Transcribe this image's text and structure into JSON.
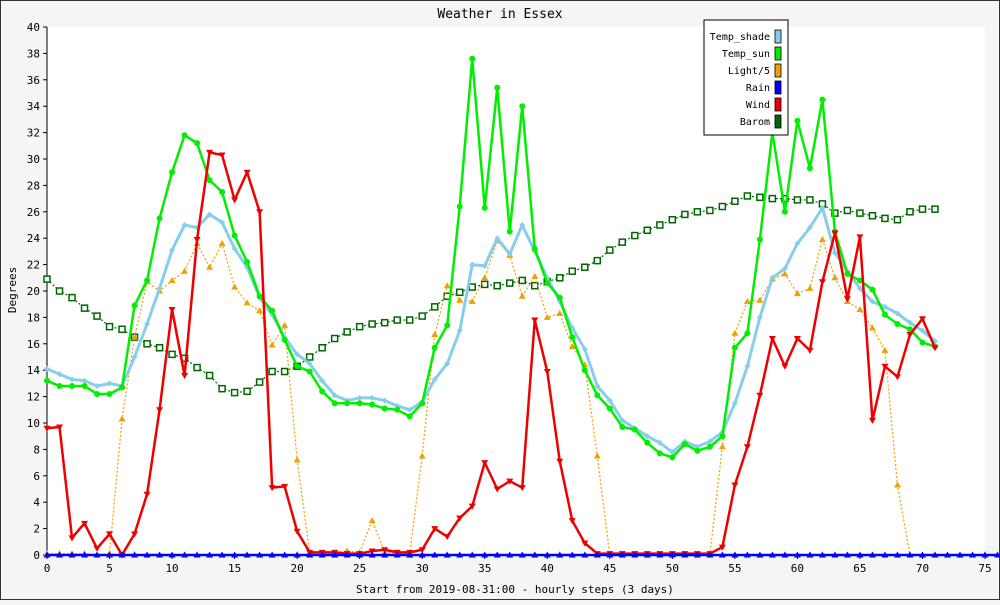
{
  "chart_data": {
    "type": "line",
    "title": "Weather in Essex",
    "xlabel": "Start from 2019-08-31:00 - hourly steps (3 days)",
    "ylabel": "Degrees",
    "xlim": [
      0,
      75
    ],
    "ylim": [
      0,
      40
    ],
    "x_ticks": [
      0,
      5,
      10,
      15,
      20,
      25,
      30,
      35,
      40,
      45,
      50,
      55,
      60,
      65,
      70,
      75
    ],
    "y_ticks": [
      0,
      2,
      4,
      6,
      8,
      10,
      12,
      14,
      16,
      18,
      20,
      22,
      24,
      26,
      28,
      30,
      32,
      34,
      36,
      38,
      40
    ],
    "grid": false,
    "legend_position": "top-right",
    "series": [
      {
        "name": "Temp_shade",
        "color": "#87ceeb",
        "marker": "diamond",
        "values": [
          14.1,
          13.7,
          13.3,
          13.2,
          12.8,
          13.0,
          12.8,
          15.0,
          17.5,
          20.2,
          23.1,
          25.0,
          24.8,
          25.8,
          25.2,
          23.2,
          21.8,
          19.5,
          18.2,
          16.5,
          15.2,
          14.5,
          13.2,
          12.1,
          11.7,
          11.9,
          11.9,
          11.7,
          11.3,
          11.0,
          11.6,
          13.3,
          14.5,
          17.0,
          22.0,
          21.9,
          24.0,
          22.8,
          25.0,
          23.0,
          21.0,
          19.2,
          17.2,
          15.6,
          12.8,
          11.7,
          10.2,
          9.6,
          9.0,
          8.5,
          7.8,
          8.6,
          8.2,
          8.6,
          9.3,
          11.5,
          14.3,
          18.0,
          21.0,
          21.7,
          23.6,
          24.8,
          26.3,
          22.9,
          21.5,
          20.2,
          19.2,
          18.8,
          18.3,
          17.6,
          17.0,
          16.2
        ]
      },
      {
        "name": "Temp_sun",
        "color": "#00ee00",
        "marker": "circle",
        "values": [
          13.2,
          12.8,
          12.8,
          12.8,
          12.2,
          12.2,
          12.7,
          18.9,
          20.8,
          25.5,
          29.0,
          31.8,
          31.2,
          28.4,
          27.5,
          24.2,
          22.2,
          19.6,
          18.5,
          16.3,
          14.3,
          13.9,
          12.4,
          11.5,
          11.5,
          11.5,
          11.4,
          11.1,
          11.0,
          10.5,
          11.5,
          15.7,
          17.4,
          26.4,
          37.6,
          26.3,
          35.4,
          24.5,
          34.0,
          23.2,
          20.6,
          19.5,
          16.5,
          14.0,
          12.1,
          11.1,
          9.7,
          9.5,
          8.5,
          7.7,
          7.4,
          8.4,
          7.9,
          8.2,
          9.0,
          15.7,
          16.8,
          23.9,
          32.0,
          26.0,
          32.9,
          29.3,
          34.5,
          24.5,
          21.3,
          20.8,
          20.1,
          18.2,
          17.5,
          17.1,
          16.1,
          15.8
        ]
      },
      {
        "name": "Light/5",
        "color": "#f0a000",
        "marker": "triangle-up",
        "values": [
          0.1,
          0.1,
          0.1,
          0.1,
          0.0,
          0.1,
          10.3,
          16.5,
          20.7,
          20.0,
          20.8,
          21.5,
          23.6,
          21.8,
          23.6,
          20.3,
          19.1,
          18.5,
          15.9,
          17.4,
          7.2,
          0.2,
          0.1,
          0.2,
          0.3,
          0.2,
          2.6,
          0.2,
          0.1,
          0.1,
          7.5,
          16.7,
          20.4,
          19.3,
          19.2,
          21.0,
          23.8,
          22.7,
          19.6,
          21.1,
          18.0,
          18.3,
          15.8,
          14.4,
          7.5,
          0.0,
          0.0,
          0.0,
          0.0,
          0.0,
          0.0,
          0.0,
          0.0,
          0.0,
          8.2,
          16.8,
          19.2,
          19.3,
          20.9,
          21.3,
          19.8,
          20.2,
          23.9,
          21.0,
          19.2,
          18.6,
          17.2,
          15.5,
          5.3,
          0.0,
          0.0,
          0.0
        ]
      },
      {
        "name": "Rain",
        "color": "#0000ff",
        "marker": "triangle-up",
        "values": [
          0,
          0,
          0,
          0,
          0,
          0,
          0,
          0,
          0,
          0,
          0,
          0,
          0,
          0,
          0,
          0,
          0,
          0,
          0,
          0,
          0,
          0,
          0,
          0,
          0,
          0,
          0,
          0,
          0,
          0,
          0,
          0,
          0,
          0,
          0,
          0,
          0,
          0,
          0,
          0,
          0,
          0,
          0,
          0,
          0,
          0,
          0,
          0,
          0,
          0,
          0,
          0,
          0,
          0,
          0,
          0,
          0,
          0,
          0,
          0,
          0,
          0,
          0,
          0,
          0,
          0,
          0,
          0,
          0,
          0,
          0,
          0,
          0,
          0,
          0,
          0,
          0
        ]
      },
      {
        "name": "Wind",
        "color": "#ee0000",
        "marker": "triangle-down",
        "values": [
          9.6,
          9.7,
          1.3,
          2.4,
          0.5,
          1.6,
          0.0,
          1.6,
          4.6,
          11.0,
          18.6,
          13.6,
          23.9,
          30.5,
          30.3,
          26.9,
          29.0,
          26.0,
          5.1,
          5.2,
          1.8,
          0.2,
          0.2,
          0.2,
          0.1,
          0.1,
          0.3,
          0.4,
          0.2,
          0.2,
          0.4,
          2.0,
          1.4,
          2.8,
          3.7,
          7.0,
          5.0,
          5.6,
          5.1,
          17.8,
          13.9,
          7.1,
          2.6,
          0.9,
          0.1,
          0.1,
          0.1,
          0.1,
          0.1,
          0.1,
          0.1,
          0.1,
          0.1,
          0.1,
          0.6,
          5.3,
          8.2,
          12.1,
          16.4,
          14.3,
          16.4,
          15.5,
          20.7,
          24.4,
          19.4,
          24.1,
          10.2,
          14.3,
          13.5,
          16.7,
          17.9,
          15.7
        ]
      },
      {
        "name": "Barom",
        "color": "#006600",
        "marker": "square",
        "values": [
          20.9,
          20.0,
          19.5,
          18.7,
          18.1,
          17.3,
          17.1,
          16.5,
          16.0,
          15.7,
          15.2,
          14.9,
          14.2,
          13.6,
          12.6,
          12.3,
          12.4,
          13.1,
          13.9,
          13.9,
          14.3,
          15.0,
          15.7,
          16.4,
          16.9,
          17.3,
          17.5,
          17.6,
          17.8,
          17.8,
          18.1,
          18.8,
          19.6,
          19.9,
          20.3,
          20.5,
          20.4,
          20.6,
          20.8,
          20.4,
          20.7,
          21.0,
          21.5,
          21.8,
          22.3,
          23.1,
          23.7,
          24.2,
          24.6,
          25.0,
          25.4,
          25.8,
          26.0,
          26.1,
          26.4,
          26.8,
          27.2,
          27.1,
          27.0,
          27.0,
          26.9,
          26.9,
          26.6,
          25.9,
          26.1,
          25.9,
          25.7,
          25.5,
          25.4,
          26.0,
          26.2,
          26.2
        ]
      }
    ]
  }
}
